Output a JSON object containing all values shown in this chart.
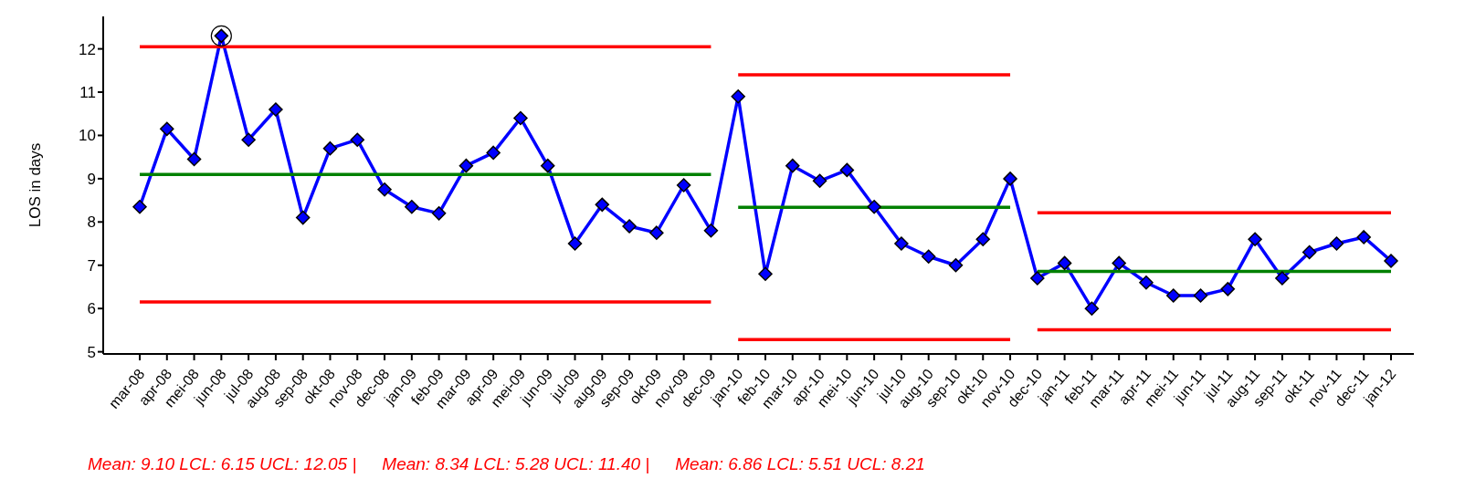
{
  "chart_data": {
    "type": "line",
    "ylabel": "LOS in days",
    "categories": [
      "mar-08",
      "apr-08",
      "mei-08",
      "jun-08",
      "jul-08",
      "aug-08",
      "sep-08",
      "okt-08",
      "nov-08",
      "dec-08",
      "jan-09",
      "feb-09",
      "mar-09",
      "apr-09",
      "mei-09",
      "jun-09",
      "jul-09",
      "aug-09",
      "sep-09",
      "okt-09",
      "nov-09",
      "dec-09",
      "jan-10",
      "feb-10",
      "mar-10",
      "apr-10",
      "mei-10",
      "jun-10",
      "jul-10",
      "aug-10",
      "sep-10",
      "okt-10",
      "nov-10",
      "dec-10",
      "jan-11",
      "feb-11",
      "mar-11",
      "apr-11",
      "mei-11",
      "jun-11",
      "jul-11",
      "aug-11",
      "sep-11",
      "okt-11",
      "nov-11",
      "dec-11",
      "jan-12"
    ],
    "ylim": [
      4.95,
      12.75
    ],
    "yticks": [
      5,
      6,
      7,
      8,
      9,
      10,
      11,
      12
    ],
    "grid": false,
    "legend": false,
    "series": [
      {
        "color": "#0000ff",
        "marker": "diamond",
        "values": [
          8.35,
          10.15,
          9.45,
          12.3,
          9.9,
          10.6,
          8.1,
          9.7,
          9.9,
          8.75,
          8.35,
          8.2,
          9.3,
          9.6,
          10.4,
          9.3,
          7.5,
          8.4,
          7.9,
          7.75,
          8.85,
          7.8,
          10.9,
          6.8,
          9.3,
          8.95,
          9.2,
          8.35,
          7.5,
          7.2,
          7.0,
          7.6,
          9.0,
          6.7,
          7.05,
          6.0,
          7.05,
          6.6,
          6.3,
          6.3,
          6.45,
          7.6,
          6.7,
          7.3,
          7.5,
          7.65,
          7.1
        ]
      },
      {
        "type": "scatter",
        "color": "#000000",
        "marker": "circle",
        "x": [
          "jun-08"
        ],
        "values": [
          12.3
        ]
      },
      {
        "color": "#008000",
        "marker": "none",
        "x": [
          "mar-08",
          "dec-09"
        ],
        "values": [
          9.1,
          9.1
        ]
      },
      {
        "color": "#ff0000",
        "marker": "none",
        "x": [
          "mar-08",
          "dec-09"
        ],
        "values": [
          6.15,
          6.15
        ]
      },
      {
        "color": "#ff0000",
        "marker": "none",
        "x": [
          "mar-08",
          "dec-09"
        ],
        "values": [
          12.05,
          12.05
        ]
      },
      {
        "color": "#008000",
        "marker": "none",
        "x": [
          "jan-10",
          "nov-10"
        ],
        "values": [
          8.34,
          8.34
        ]
      },
      {
        "color": "#ff0000",
        "marker": "none",
        "x": [
          "jan-10",
          "nov-10"
        ],
        "values": [
          5.28,
          5.28
        ]
      },
      {
        "color": "#ff0000",
        "marker": "none",
        "x": [
          "jan-10",
          "nov-10"
        ],
        "values": [
          11.4,
          11.4
        ]
      },
      {
        "color": "#008000",
        "marker": "none",
        "x": [
          "dec-10",
          "jan-12"
        ],
        "values": [
          6.86,
          6.86
        ]
      },
      {
        "color": "#ff0000",
        "marker": "none",
        "x": [
          "dec-10",
          "jan-12"
        ],
        "values": [
          5.51,
          5.51
        ]
      },
      {
        "color": "#ff0000",
        "marker": "none",
        "x": [
          "dec-10",
          "jan-12"
        ],
        "values": [
          8.21,
          8.21
        ]
      }
    ],
    "annotations": [
      "Mean: 9.10 LCL: 6.15 UCL: 12.05 |",
      "Mean: 8.34 LCL: 5.28 UCL: 11.40 |",
      "Mean: 6.86 LCL: 5.51 UCL: 8.21"
    ]
  }
}
